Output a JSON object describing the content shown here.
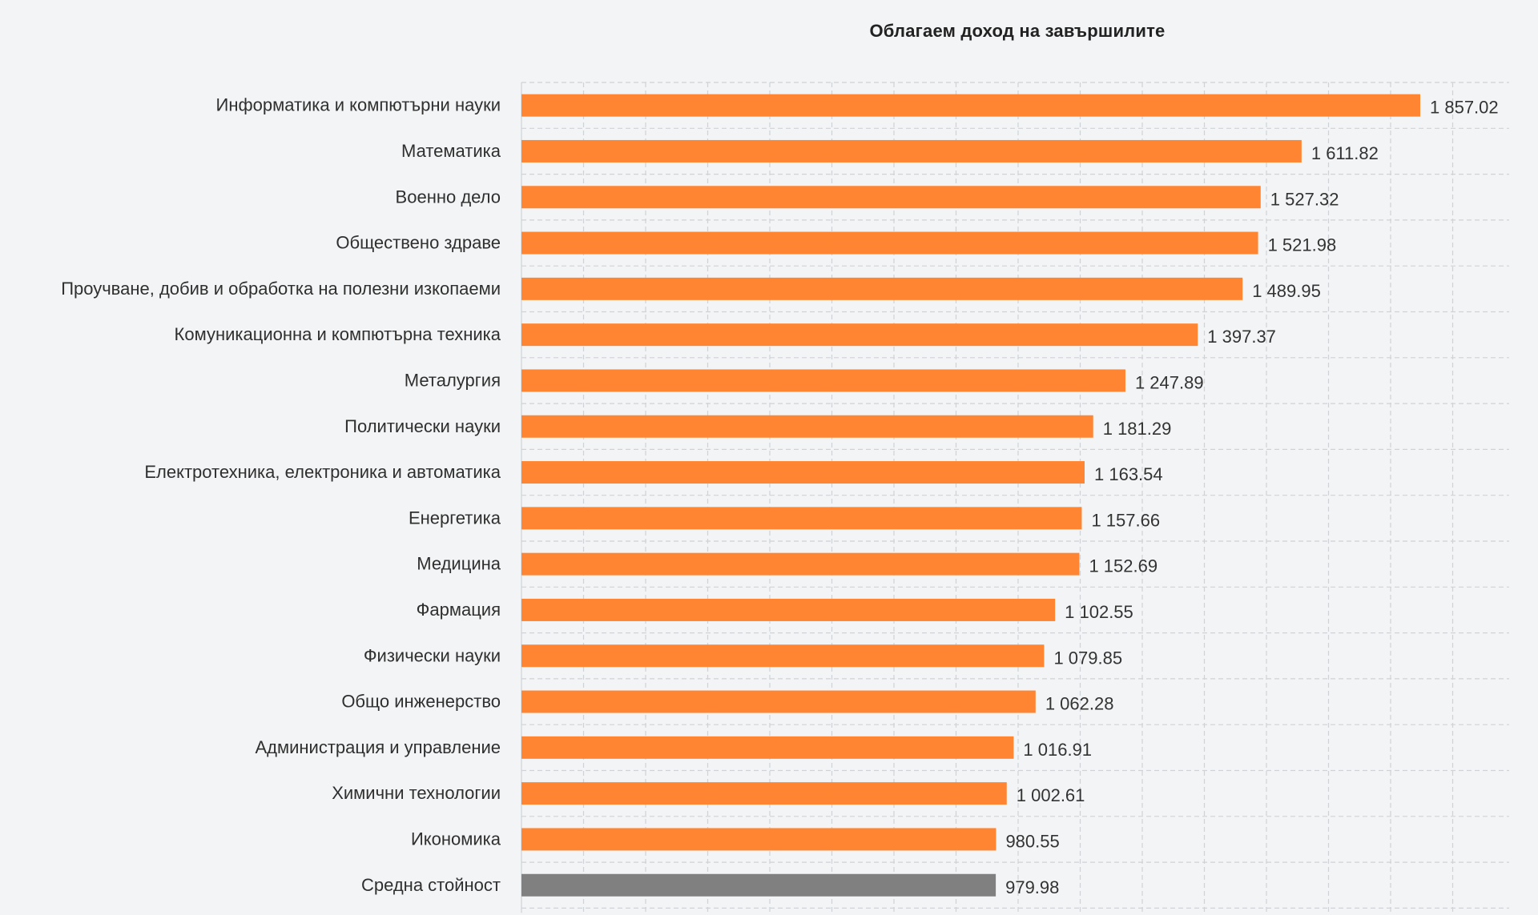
{
  "chart_data": {
    "type": "bar",
    "orientation": "horizontal",
    "title": "Облагаем доход на завършилите",
    "xlabel": "",
    "ylabel": "",
    "grid": true,
    "xlim": [
      0,
      1900
    ],
    "categories": [
      "Информатика и компютърни науки",
      "Математика",
      "Военно дело",
      "Обществено здраве",
      "Проучване, добив и обработка на полезни изкопаеми",
      "Комуникационна и компютърна техника",
      "Металургия",
      "Политически науки",
      "Електротехника, електроника и автоматика",
      "Енергетика",
      "Медицина",
      "Фармация",
      "Физически науки",
      "Общо инженерство",
      "Администрация и управление",
      "Химични технологии",
      "Икономика",
      "Средна стойност"
    ],
    "values": [
      1857.02,
      1611.82,
      1527.32,
      1521.98,
      1489.95,
      1397.37,
      1247.89,
      1181.29,
      1163.54,
      1157.66,
      1152.69,
      1102.55,
      1079.85,
      1062.28,
      1016.91,
      1002.61,
      980.55,
      979.98
    ],
    "value_labels": [
      "1 857.02",
      "1 611.82",
      "1 527.32",
      "1 521.98",
      "1 489.95",
      "1 397.37",
      "1 247.89",
      "1 181.29",
      "1 163.54",
      "1 157.66",
      "1 152.69",
      "1 102.55",
      "1 079.85",
      "1 062.28",
      "1 016.91",
      "1 002.61",
      "980.55",
      "979.98"
    ],
    "bar_colors": [
      "#ff8533",
      "#ff8533",
      "#ff8533",
      "#ff8533",
      "#ff8533",
      "#ff8533",
      "#ff8533",
      "#ff8533",
      "#ff8533",
      "#ff8533",
      "#ff8533",
      "#ff8533",
      "#ff8533",
      "#ff8533",
      "#ff8533",
      "#ff8533",
      "#ff8533",
      "#808080"
    ],
    "grid_color": "#cfd2d6",
    "background": "#f3f4f5"
  }
}
